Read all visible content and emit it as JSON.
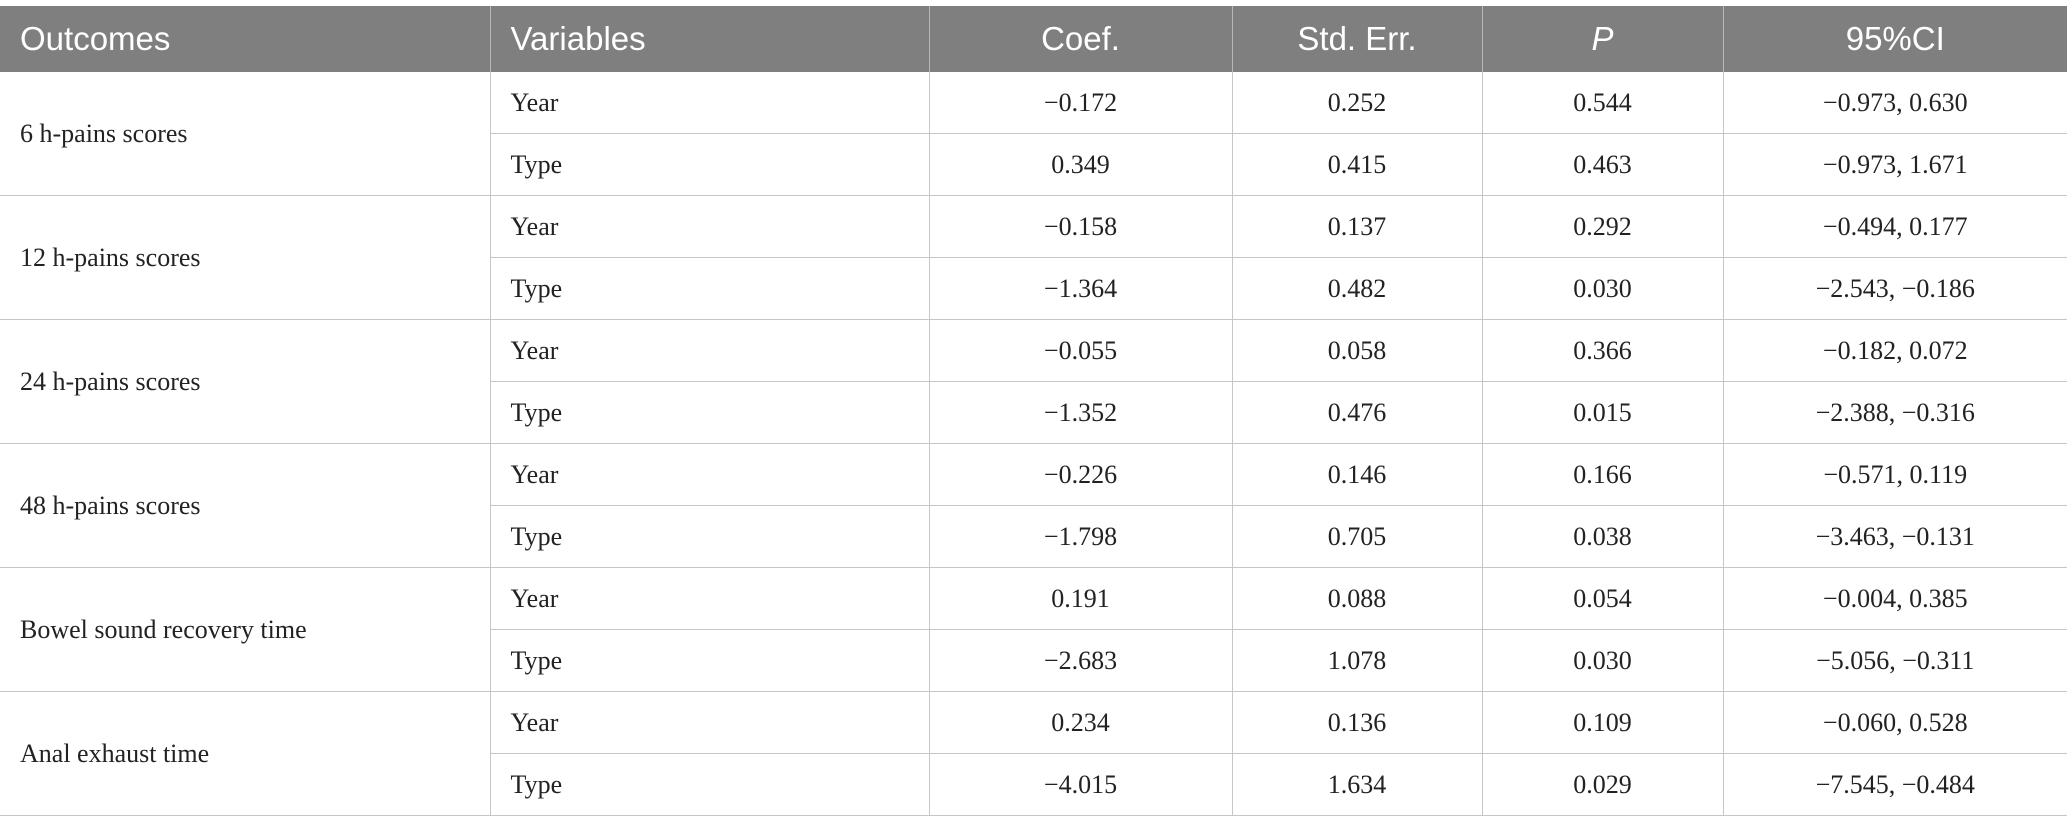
{
  "header": {
    "outcomes": "Outcomes",
    "variables": "Variables",
    "coef": "Coef.",
    "std_err": "Std. Err.",
    "p": "P",
    "ci": "95%CI"
  },
  "groups": [
    {
      "outcome": "6 h-pains scores",
      "rows": [
        {
          "variable": "Year",
          "coef": "−0.172",
          "std_err": "0.252",
          "p": "0.544",
          "ci": "−0.973, 0.630"
        },
        {
          "variable": "Type",
          "coef": "0.349",
          "std_err": "0.415",
          "p": "0.463",
          "ci": "−0.973, 1.671"
        }
      ]
    },
    {
      "outcome": "12 h-pains scores",
      "rows": [
        {
          "variable": "Year",
          "coef": "−0.158",
          "std_err": "0.137",
          "p": "0.292",
          "ci": "−0.494, 0.177"
        },
        {
          "variable": "Type",
          "coef": "−1.364",
          "std_err": "0.482",
          "p": "0.030",
          "ci": "−2.543, −0.186"
        }
      ]
    },
    {
      "outcome": "24 h-pains scores",
      "rows": [
        {
          "variable": "Year",
          "coef": "−0.055",
          "std_err": "0.058",
          "p": "0.366",
          "ci": "−0.182, 0.072"
        },
        {
          "variable": "Type",
          "coef": "−1.352",
          "std_err": "0.476",
          "p": "0.015",
          "ci": "−2.388, −0.316"
        }
      ]
    },
    {
      "outcome": "48 h-pains scores",
      "rows": [
        {
          "variable": "Year",
          "coef": "−0.226",
          "std_err": "0.146",
          "p": "0.166",
          "ci": "−0.571, 0.119"
        },
        {
          "variable": "Type",
          "coef": "−1.798",
          "std_err": "0.705",
          "p": "0.038",
          "ci": "−3.463, −0.131"
        }
      ]
    },
    {
      "outcome": "Bowel sound recovery time",
      "rows": [
        {
          "variable": "Year",
          "coef": "0.191",
          "std_err": "0.088",
          "p": "0.054",
          "ci": "−0.004, 0.385"
        },
        {
          "variable": "Type",
          "coef": "−2.683",
          "std_err": "1.078",
          "p": "0.030",
          "ci": "−5.056, −0.311"
        }
      ]
    },
    {
      "outcome": "Anal exhaust time",
      "rows": [
        {
          "variable": "Year",
          "coef": "0.234",
          "std_err": "0.136",
          "p": "0.109",
          "ci": "−0.060, 0.528"
        },
        {
          "variable": "Type",
          "coef": "−4.015",
          "std_err": "1.634",
          "p": "0.029",
          "ci": "−7.545, −0.484"
        }
      ]
    }
  ]
}
